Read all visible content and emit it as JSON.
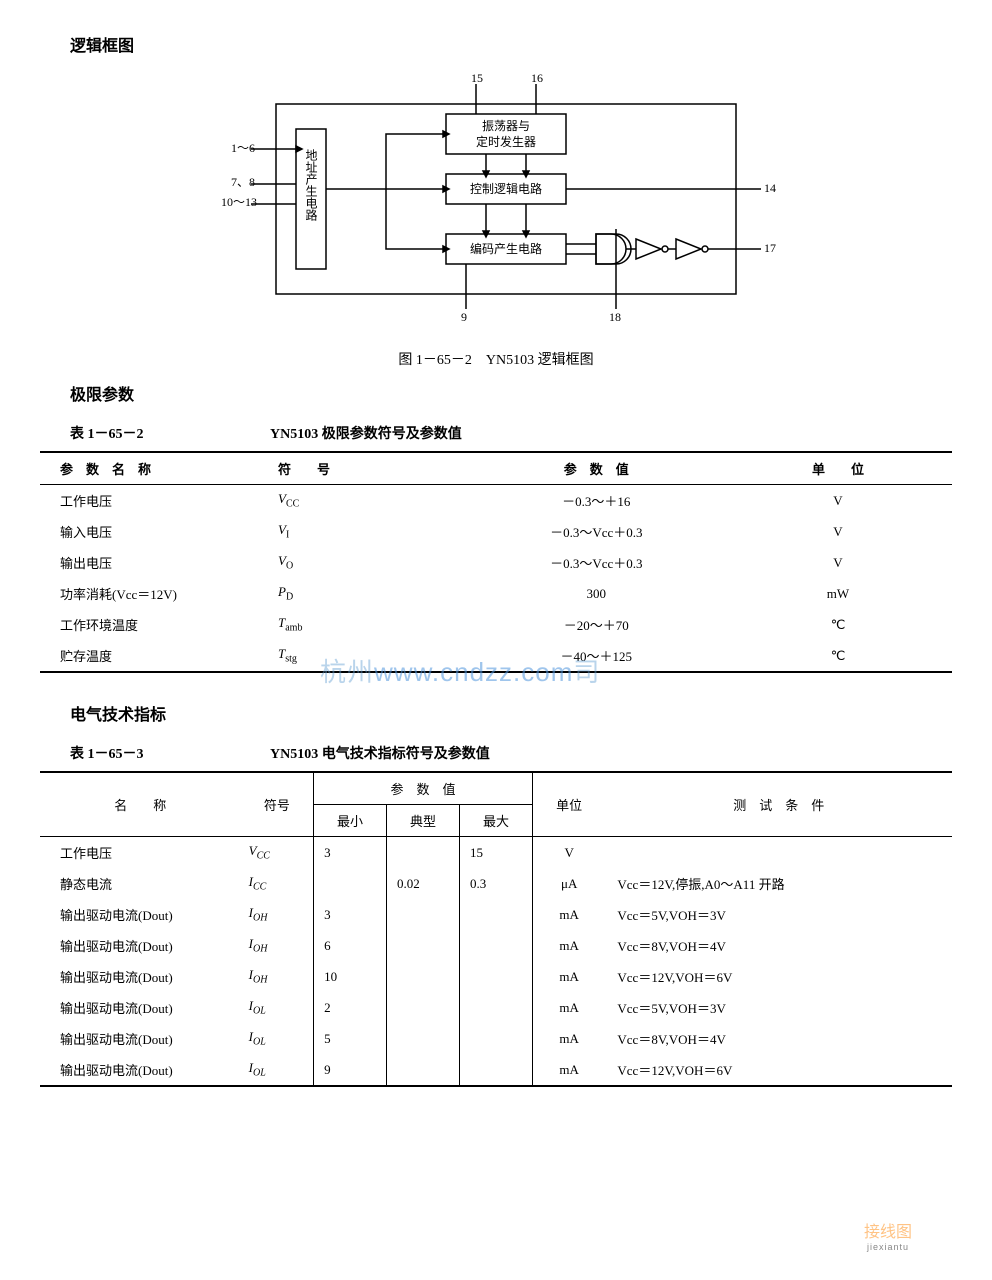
{
  "sections": {
    "s1": "逻辑框图",
    "s2": "极限参数",
    "s3": "电气技术指标"
  },
  "diagram": {
    "caption": "图 1－65－2　YN5103 逻辑框图",
    "pins": {
      "p1": "1～6",
      "p2": "7、8",
      "p3": "10～13",
      "p4": "15",
      "p5": "16",
      "p6": "14",
      "p7": "17",
      "p8": "9",
      "p9": "18"
    },
    "blocks": {
      "addr": "地址产生电路",
      "osc": "振荡器与\n定时发生器",
      "ctrl": "控制逻辑电路",
      "enc": "编码产生电路"
    },
    "box_stroke": "#000000",
    "box_fill": "#ffffff",
    "line_width": 1.5
  },
  "table1": {
    "number": "表 1－65－2",
    "title": "YN5103 极限参数符号及参数值",
    "headers": [
      "参　数　名　称",
      "符　　号",
      "参　数　值",
      "单　　位"
    ],
    "rows": [
      {
        "name": "工作电压",
        "sym": "V",
        "sub": "CC",
        "val": "－0.3～＋16",
        "unit": "V"
      },
      {
        "name": "输入电压",
        "sym": "V",
        "sub": "I",
        "val": "－0.3～Vcc＋0.3",
        "unit": "V"
      },
      {
        "name": "输出电压",
        "sym": "V",
        "sub": "O",
        "val": "－0.3～Vcc＋0.3",
        "unit": "V"
      },
      {
        "name": "功率消耗(Vcc＝12V)",
        "sym": "P",
        "sub": "D",
        "val": "300",
        "unit": "mW"
      },
      {
        "name": "工作环境温度",
        "sym": "T",
        "sub": "amb",
        "val": "－20～＋70",
        "unit": "℃"
      },
      {
        "name": "贮存温度",
        "sym": "T",
        "sub": "stg",
        "val": "－40～＋125",
        "unit": "℃"
      }
    ]
  },
  "table2": {
    "number": "表 1－65－3",
    "title": "YN5103 电气技术指标符号及参数值",
    "headers": {
      "name": "名　　称",
      "sym": "符号",
      "valgroup": "参　数　值",
      "min": "最小",
      "typ": "典型",
      "max": "最大",
      "unit": "单位",
      "cond": "测　试　条　件"
    },
    "rows": [
      {
        "name": "工作电压",
        "sym": "V",
        "sub": "CC",
        "min": "3",
        "typ": "",
        "max": "15",
        "unit": "V",
        "cond": ""
      },
      {
        "name": "静态电流",
        "sym": "I",
        "sub": "CC",
        "min": "",
        "typ": "0.02",
        "max": "0.3",
        "unit": "μA",
        "cond": "Vcc＝12V,停振,A0～A11 开路"
      },
      {
        "name": "输出驱动电流(Dout)",
        "sym": "I",
        "sub": "OH",
        "min": "3",
        "typ": "",
        "max": "",
        "unit": "mA",
        "cond": "Vcc＝5V,VOH＝3V"
      },
      {
        "name": "输出驱动电流(Dout)",
        "sym": "I",
        "sub": "OH",
        "min": "6",
        "typ": "",
        "max": "",
        "unit": "mA",
        "cond": "Vcc＝8V,VOH＝4V"
      },
      {
        "name": "输出驱动电流(Dout)",
        "sym": "I",
        "sub": "OH",
        "min": "10",
        "typ": "",
        "max": "",
        "unit": "mA",
        "cond": "Vcc＝12V,VOH＝6V"
      },
      {
        "name": "输出驱动电流(Dout)",
        "sym": "I",
        "sub": "OL",
        "min": "2",
        "typ": "",
        "max": "",
        "unit": "mA",
        "cond": "Vcc＝5V,VOH＝3V"
      },
      {
        "name": "输出驱动电流(Dout)",
        "sym": "I",
        "sub": "OL",
        "min": "5",
        "typ": "",
        "max": "",
        "unit": "mA",
        "cond": "Vcc＝8V,VOH＝4V"
      },
      {
        "name": "输出驱动电流(Dout)",
        "sym": "I",
        "sub": "OL",
        "min": "9",
        "typ": "",
        "max": "",
        "unit": "mA",
        "cond": "Vcc＝12V,VOH＝6V"
      }
    ]
  },
  "watermark": {
    "main_left": "杭州",
    "main_url": "www.cndzz.com",
    "main_right": "司",
    "corner": "接线图",
    "corner_sub": "jiexiantu"
  }
}
